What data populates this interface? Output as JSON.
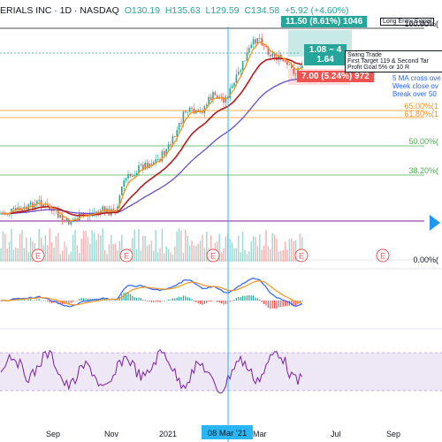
{
  "header": {
    "symbol_text": "ERIALS INC · 1D · NASDAQ",
    "open": "O130.19",
    "high": "H135.63",
    "low": "L129.59",
    "close": "C134.58",
    "change": "+5.92 (+4.60%)"
  },
  "tags": {
    "top_range": "11.50 (8.61%) 1046",
    "mid_range_1": "1.08 ~ 4",
    "mid_range_2": "1.64",
    "red_range": "7.00 (5.24%) 972"
  },
  "annotations": {
    "long_entry": "Long Entry Signal",
    "swing_trade_title": "Swing Trade",
    "swing_trade_line1": "First Target 119 & Second Tar",
    "swing_trade_line2": "Profit Goal 5% or 10 R",
    "cross_note_1": "5 MA cross ove",
    "cross_note_2": "Week close ov",
    "cross_note_3": "Break over 50"
  },
  "fib_levels": {
    "l100": "100.00%(",
    "l65": "65.00%(1",
    "l618": "61.80%(1",
    "l50": "50.00%(",
    "l382": "38.20%(",
    "l0": "0.00%("
  },
  "x_axis": {
    "sep": "Sep",
    "nov": "Nov",
    "y2021": "2021",
    "crosshair_date": "08 Mar '21",
    "mar": "Mar",
    "jul": "Jul",
    "sep2": "Sep"
  },
  "events": {
    "marker": "E"
  },
  "colors": {
    "candle_up": "#26a69a",
    "candle_down": "#ef5350",
    "ma_fast": "#f7931a",
    "ma_mid": "#b71c1c",
    "ma_slow": "#6a4cc6",
    "crosshair": "#29b6f6",
    "fib_orange": "#f7931a",
    "fib_green": "#4caf50",
    "fib_purple": "#7b1fa2",
    "rsi_band": "#ede7f6",
    "rsi_line": "#7b1fa2"
  }
}
